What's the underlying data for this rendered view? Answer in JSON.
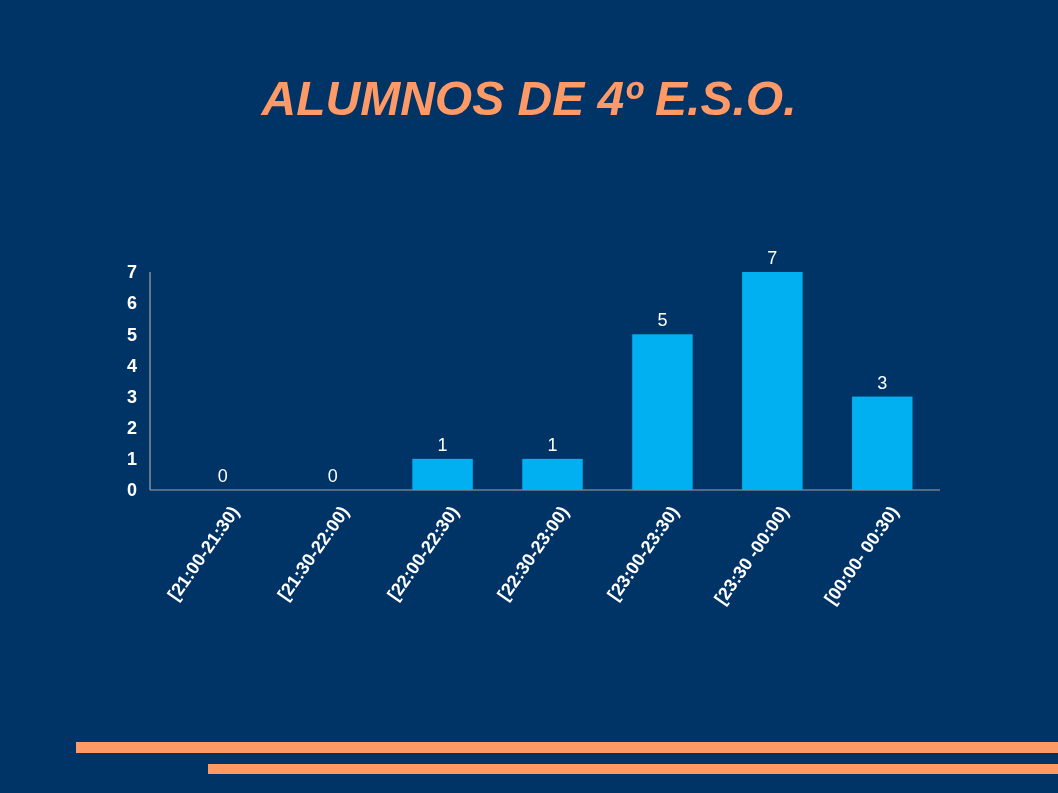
{
  "chart_data": {
    "type": "bar",
    "title": "ALUMNOS DE 4º E.S.O.",
    "categories": [
      "[21:00-21:30)",
      "[21:30-22:00)",
      "[22:00-22:30)",
      "[22:30-23:00)",
      "[23:00-23:30)",
      "[23:30 -00:00)",
      "[00:00- 00:30)"
    ],
    "values": [
      0,
      0,
      1,
      1,
      5,
      7,
      3
    ],
    "color": "#00b0f0",
    "ylim": [
      0,
      7
    ],
    "yticks": [
      0,
      1,
      2,
      3,
      4,
      5,
      6,
      7
    ],
    "data_labels": true
  }
}
